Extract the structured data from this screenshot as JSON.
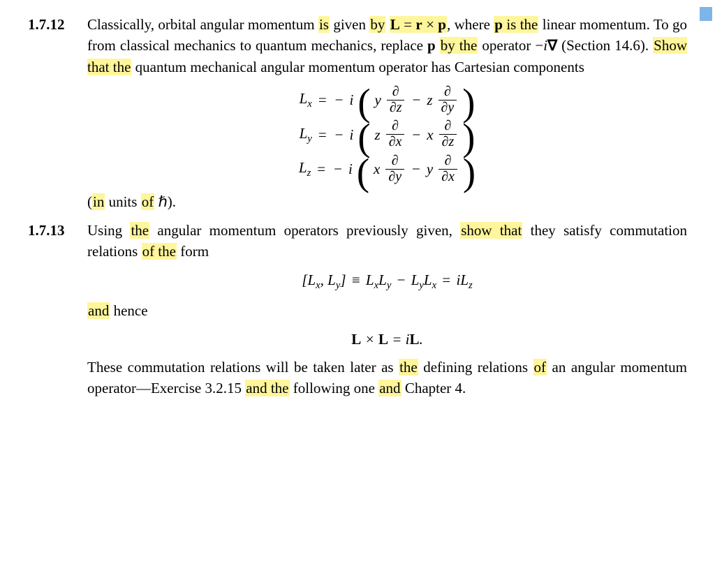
{
  "highlight_color": "#fff59a",
  "problem1": {
    "number": "1.7.12",
    "text_parts": {
      "t1": "Classically, orbital angular momentum ",
      "h1": "is",
      "t2": " given ",
      "h2": "by",
      "t3": " ",
      "eq1": "L = r × p",
      "t4": ", where ",
      "h3": "p is the",
      "t5": " linear momentum. To go from classical mechanics to quantum mechanics, replace ",
      "p": "p",
      "t6": " ",
      "h4": "by the",
      "t7": " operator −",
      "i": "i",
      "nabla": "∇",
      "t8": " (Section 14.6). ",
      "h5": "Show that the",
      "t9": " quantum mechanical angular momentum operator has Cartesian components"
    },
    "equations": {
      "Lx": {
        "lhs_sub": "x",
        "a_coef": "y",
        "a_den": "∂z",
        "b_coef": "z",
        "b_den": "∂y"
      },
      "Ly": {
        "lhs_sub": "y",
        "a_coef": "z",
        "a_den": "∂x",
        "b_coef": "x",
        "b_den": "∂z"
      },
      "Lz": {
        "lhs_sub": "z",
        "a_coef": "x",
        "a_den": "∂y",
        "b_coef": "y",
        "b_den": "∂x"
      }
    },
    "units": {
      "open": "(",
      "h_in": "in",
      "t1": " units ",
      "h_of": "of",
      "t2": " ℏ)."
    }
  },
  "problem2": {
    "number": "1.7.13",
    "text_parts": {
      "t1": "Using ",
      "h1": "the",
      "t2": " angular momentum operators previously given, ",
      "h2": "show that",
      "t3": " they satisfy commutation relations ",
      "h3": "of the",
      "t4": " form"
    },
    "commutator": "[Lₓ, Lᵧ] ≡ LₓLᵧ − LᵧLₓ = iL_z",
    "and_hence": {
      "h": "and",
      "t": " hence"
    },
    "cross": "L × L = iL.",
    "closing": {
      "t1": "These commutation relations will be taken later as ",
      "h1": "the",
      "t2": " defining relations ",
      "h2": "of",
      "t3": " an angular momentum operator—Exercise 3.2.15 ",
      "h3": "and the",
      "t4": " following one ",
      "h4": "and",
      "t5": " Chapter 4."
    }
  }
}
